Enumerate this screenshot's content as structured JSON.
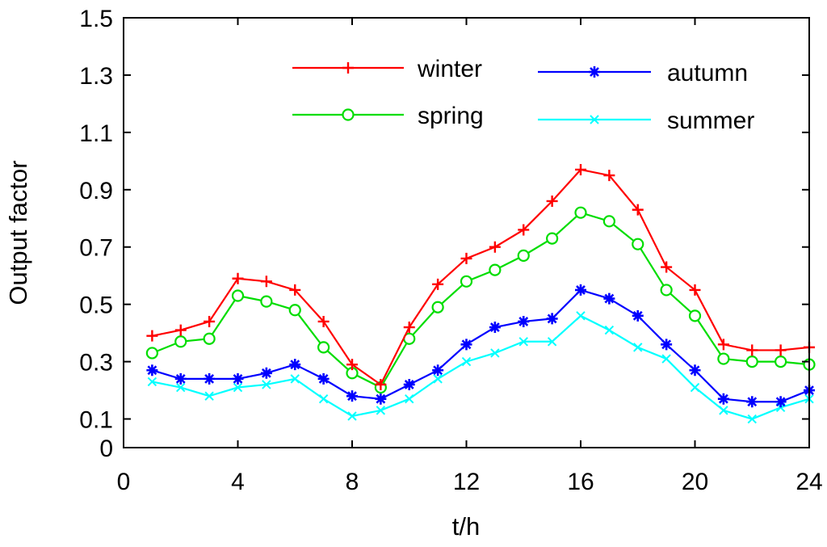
{
  "chart_data": {
    "type": "line",
    "title": "",
    "xlabel": "t/h",
    "ylabel": "Output factor",
    "xlim": [
      0,
      24
    ],
    "ylim": [
      0,
      1.5
    ],
    "xticks": [
      0,
      4,
      8,
      12,
      16,
      20,
      24
    ],
    "xtick_labels": [
      "0",
      "4",
      "8",
      "12",
      "16",
      "20",
      "24"
    ],
    "yticks": [
      0,
      0.1,
      0.3,
      0.5,
      0.7,
      0.9,
      1.1,
      1.3,
      1.5
    ],
    "ytick_labels": [
      "0",
      "0.1",
      "0.3",
      "0.5",
      "0.7",
      "0.9",
      "1.1",
      "1.3",
      "1.5"
    ],
    "grid": false,
    "legend_position": "top-right",
    "x": [
      1,
      2,
      3,
      4,
      5,
      6,
      7,
      8,
      9,
      10,
      11,
      12,
      13,
      14,
      15,
      16,
      17,
      18,
      19,
      20,
      21,
      22,
      23,
      24
    ],
    "series": [
      {
        "name": "winter",
        "color": "#ff0000",
        "marker": "plus",
        "values": [
          0.39,
          0.41,
          0.44,
          0.59,
          0.58,
          0.55,
          0.44,
          0.29,
          0.22,
          0.42,
          0.57,
          0.66,
          0.7,
          0.76,
          0.86,
          0.97,
          0.95,
          0.83,
          0.63,
          0.55,
          0.36,
          0.34,
          0.34,
          0.35
        ]
      },
      {
        "name": "spring",
        "color": "#00dd00",
        "marker": "circle",
        "values": [
          0.33,
          0.37,
          0.38,
          0.53,
          0.51,
          0.48,
          0.35,
          0.26,
          0.21,
          0.38,
          0.49,
          0.58,
          0.62,
          0.67,
          0.73,
          0.82,
          0.79,
          0.71,
          0.55,
          0.46,
          0.31,
          0.3,
          0.3,
          0.29
        ]
      },
      {
        "name": "autumn",
        "color": "#0000ff",
        "marker": "star",
        "values": [
          0.27,
          0.24,
          0.24,
          0.24,
          0.26,
          0.29,
          0.24,
          0.18,
          0.17,
          0.22,
          0.27,
          0.36,
          0.42,
          0.44,
          0.45,
          0.55,
          0.52,
          0.46,
          0.36,
          0.27,
          0.17,
          0.16,
          0.16,
          0.2
        ]
      },
      {
        "name": "summer",
        "color": "#00ffff",
        "marker": "x",
        "values": [
          0.23,
          0.21,
          0.18,
          0.21,
          0.22,
          0.24,
          0.17,
          0.11,
          0.13,
          0.17,
          0.24,
          0.3,
          0.33,
          0.37,
          0.37,
          0.46,
          0.41,
          0.35,
          0.31,
          0.21,
          0.13,
          0.1,
          0.14,
          0.17
        ]
      }
    ],
    "legend_entries": [
      "winter",
      "spring",
      "autumn",
      "summer"
    ]
  }
}
